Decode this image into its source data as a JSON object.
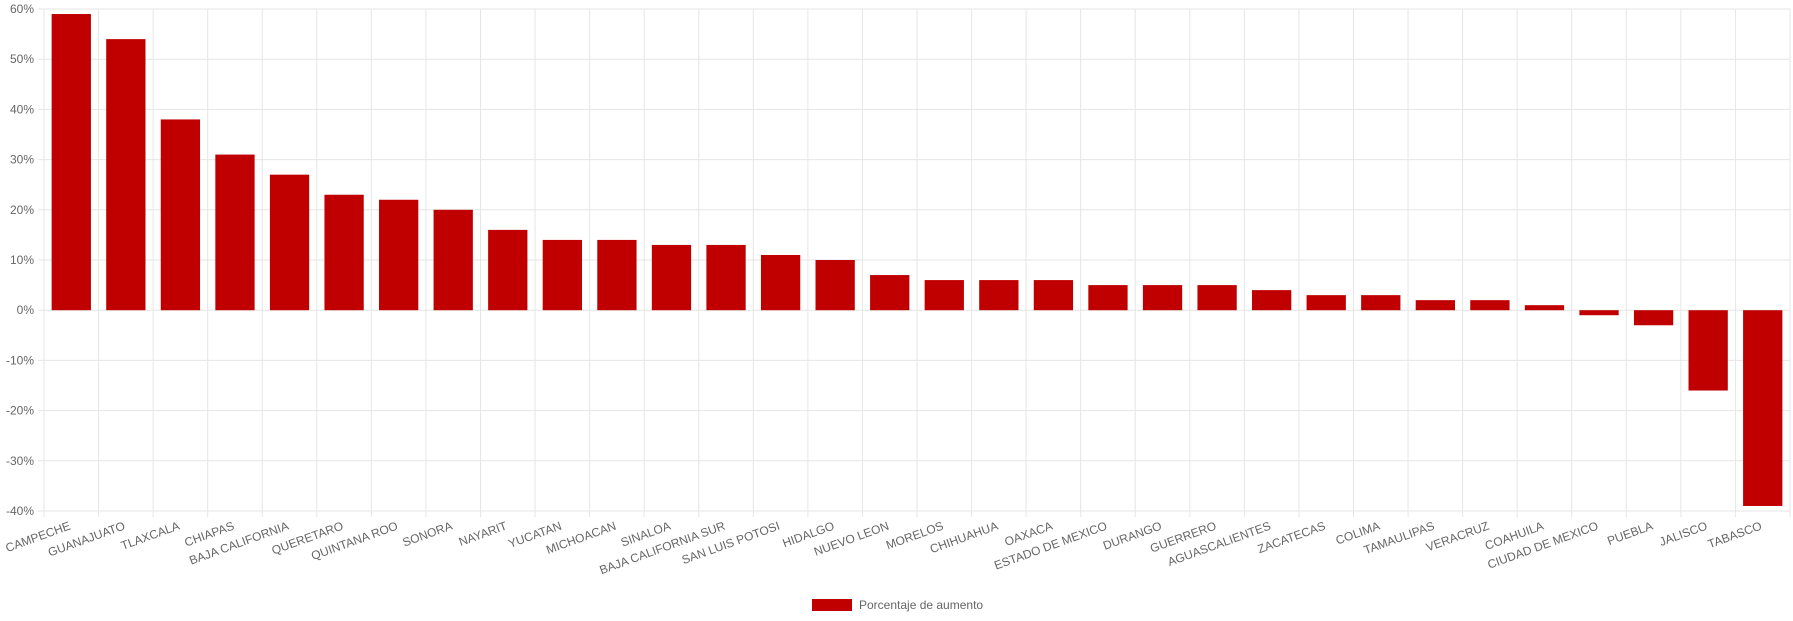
{
  "chart_data": {
    "type": "bar",
    "categories": [
      "CAMPECHE",
      "GUANAJUATO",
      "TLAXCALA",
      "CHIAPAS",
      "BAJA CALIFORNIA",
      "QUERETARO",
      "QUINTANA ROO",
      "SONORA",
      "NAYARIT",
      "YUCATAN",
      "MICHOACAN",
      "SINALOA",
      "BAJA CALIFORNIA SUR",
      "SAN LUIS POTOSI",
      "HIDALGO",
      "NUEVO LEON",
      "MORELOS",
      "CHIHUAHUA",
      "OAXACA",
      "ESTADO DE MEXICO",
      "DURANGO",
      "GUERRERO",
      "AGUASCALIENTES",
      "ZACATECAS",
      "COLIMA",
      "TAMAULIPAS",
      "VERACRUZ",
      "COAHUILA",
      "CIUDAD DE MEXICO",
      "PUEBLA",
      "JALISCO",
      "TABASCO"
    ],
    "series": [
      {
        "name": "Porcentaje de aumento",
        "color": "#c00000",
        "values": [
          59,
          54,
          38,
          31,
          27,
          23,
          22,
          20,
          16,
          14,
          14,
          13,
          13,
          11,
          10,
          7,
          6,
          6,
          6,
          5,
          5,
          5,
          4,
          3,
          3,
          2,
          2,
          1,
          -1,
          -3,
          -16,
          -39
        ]
      }
    ],
    "ylim": [
      -40,
      60
    ],
    "yticks": [
      {
        "value": -40,
        "label": "-40%"
      },
      {
        "value": -30,
        "label": "-30%"
      },
      {
        "value": -20,
        "label": "-20%"
      },
      {
        "value": -10,
        "label": "-10%"
      },
      {
        "value": 0,
        "label": "0%"
      },
      {
        "value": 10,
        "label": "10%"
      },
      {
        "value": 20,
        "label": "20%"
      },
      {
        "value": 30,
        "label": "30%"
      },
      {
        "value": 40,
        "label": "40%"
      },
      {
        "value": 50,
        "label": "50%"
      },
      {
        "value": 60,
        "label": "60%"
      }
    ],
    "grid": true,
    "legend": "bottom"
  }
}
